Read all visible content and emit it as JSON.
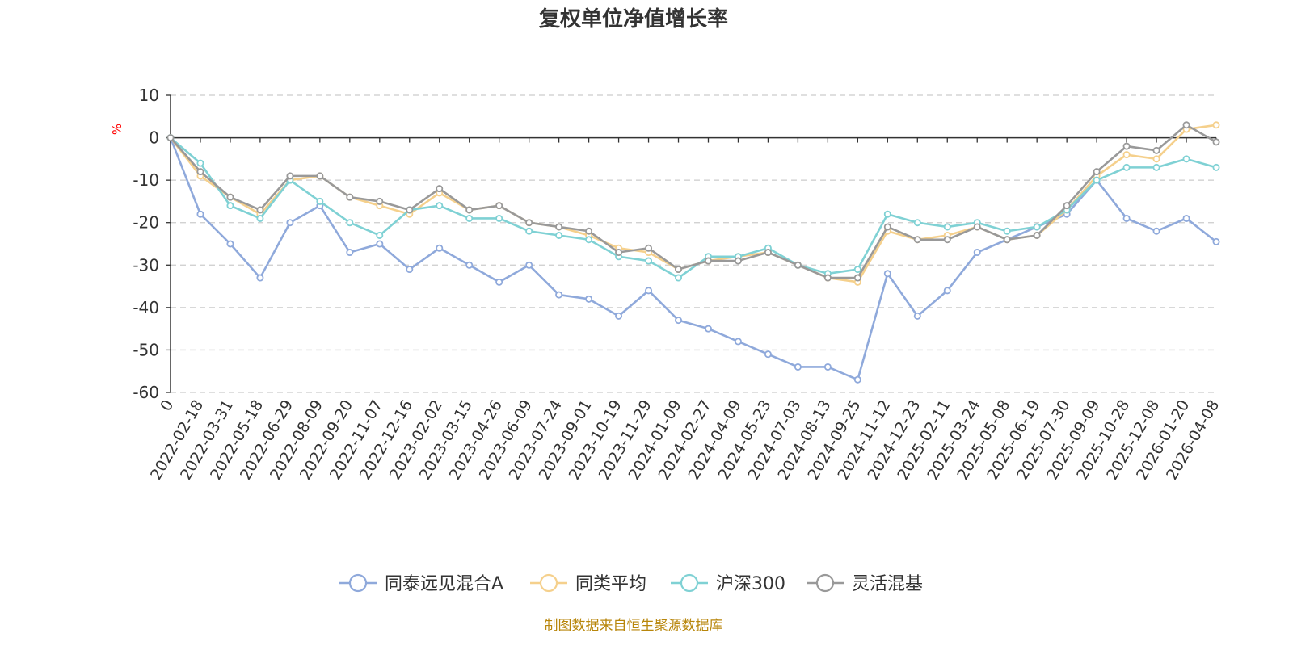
{
  "chart_data": {
    "type": "line",
    "title": "复权单位净值增长率",
    "ylabel": "%",
    "ylim": [
      -60,
      10
    ],
    "yticks": [
      10,
      0,
      -10,
      -20,
      -30,
      -40,
      -50,
      -60
    ],
    "grid": "dashed-horizontal",
    "legend_position": "bottom-center",
    "source": "制图数据来自恒生聚源数据库",
    "categories": [
      "0",
      "2022-02-18",
      "2022-03-31",
      "2022-05-18",
      "2022-06-29",
      "2022-08-09",
      "2022-09-20",
      "2022-11-07",
      "2022-12-16",
      "2023-02-02",
      "2023-03-15",
      "2023-04-26",
      "2023-06-09",
      "2023-07-24",
      "2023-09-01",
      "2023-10-19",
      "2023-11-29",
      "2024-01-09",
      "2024-02-27",
      "2024-04-09",
      "2024-05-23",
      "2024-07-03",
      "2024-08-13",
      "2024-09-25",
      "2024-11-12",
      "2024-12-23",
      "2025-02-11",
      "2025-03-24",
      "2025-05-08",
      "2025-06-19",
      "2025-07-30",
      "2025-09-09",
      "2025-10-28",
      "2025-12-08",
      "2026-01-20",
      "2026-04-08"
    ],
    "series": [
      {
        "name": "同泰远见混合A",
        "color": "#8fa9db",
        "values": [
          0,
          -18,
          -25,
          -33,
          -20,
          -16,
          -27,
          -25,
          -31,
          -26,
          -30,
          -34,
          -30,
          -37,
          -38,
          -42,
          -36,
          -43,
          -45,
          -48,
          -51,
          -54,
          -54,
          -57,
          -32,
          -42,
          -36,
          -27,
          -24,
          -21,
          -18,
          -10,
          -19,
          -22,
          -19,
          -24.5
        ]
      },
      {
        "name": "同类平均",
        "color": "#f5d08c",
        "values": [
          0,
          -9,
          -14,
          -18,
          -10,
          -9,
          -14,
          -16,
          -18,
          -13,
          -17,
          -16,
          -20,
          -21,
          -23,
          -26,
          -27,
          -31,
          -29,
          -28,
          -27,
          -30,
          -33,
          -34,
          -22,
          -24,
          -23,
          -21,
          -24,
          -23,
          -17,
          -9,
          -4,
          -5,
          2,
          3
        ]
      },
      {
        "name": "沪深300",
        "color": "#7fd1d4",
        "values": [
          0,
          -6,
          -16,
          -19,
          -10,
          -15,
          -20,
          -23,
          -17,
          -16,
          -19,
          -19,
          -22,
          -23,
          -24,
          -28,
          -29,
          -33,
          -28,
          -28,
          -26,
          -30,
          -32,
          -31,
          -18,
          -20,
          -21,
          -20,
          -22,
          -21,
          -17,
          -10,
          -7,
          -7,
          -5,
          -7
        ]
      },
      {
        "name": "灵活混基",
        "color": "#999999",
        "values": [
          0,
          -8,
          -14,
          -17,
          -9,
          -9,
          -14,
          -15,
          -17,
          -12,
          -17,
          -16,
          -20,
          -21,
          -22,
          -27,
          -26,
          -31,
          -29,
          -29,
          -27,
          -30,
          -33,
          -33,
          -21,
          -24,
          -24,
          -21,
          -24,
          -23,
          -16,
          -8,
          -2,
          -3,
          3,
          -1
        ]
      }
    ]
  }
}
